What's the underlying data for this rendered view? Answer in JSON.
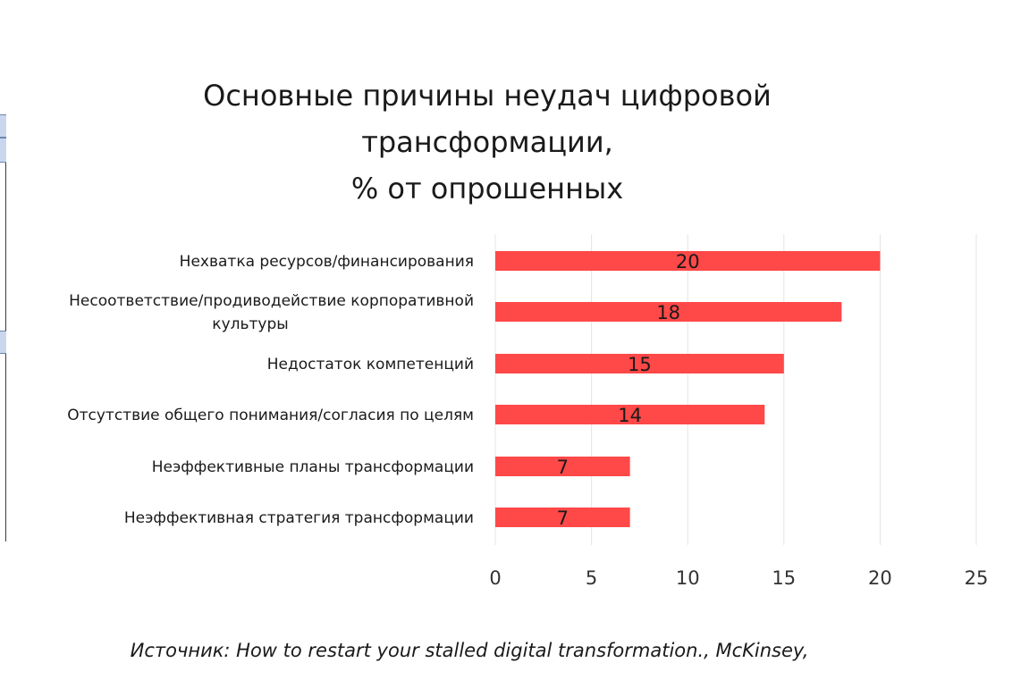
{
  "chart_data": {
    "type": "bar",
    "orientation": "horizontal",
    "title_lines": [
      "Основные причины неудач цифровой",
      "трансформации,",
      "% от опрошенных"
    ],
    "categories": [
      [
        "Нехватка ресурсов/финансирования"
      ],
      [
        "Несоответствие/продиводействие корпоративной",
        "культуры"
      ],
      [
        "Недостаток компетенций"
      ],
      [
        "Отсутствие общего понимания/согласия по целям"
      ],
      [
        "Неэффективные планы трансформации"
      ],
      [
        "Неэффективная стратегия трансформации"
      ]
    ],
    "values": [
      20,
      18,
      15,
      14,
      7,
      7
    ],
    "xlim": [
      0,
      25
    ],
    "xticks": [
      0,
      5,
      10,
      15,
      20,
      25
    ],
    "grid": "vertical",
    "bar_color": "#ff4848",
    "legend": "none"
  },
  "source_note": "Источник: How to restart your stalled digital transformation., McKinsey,"
}
